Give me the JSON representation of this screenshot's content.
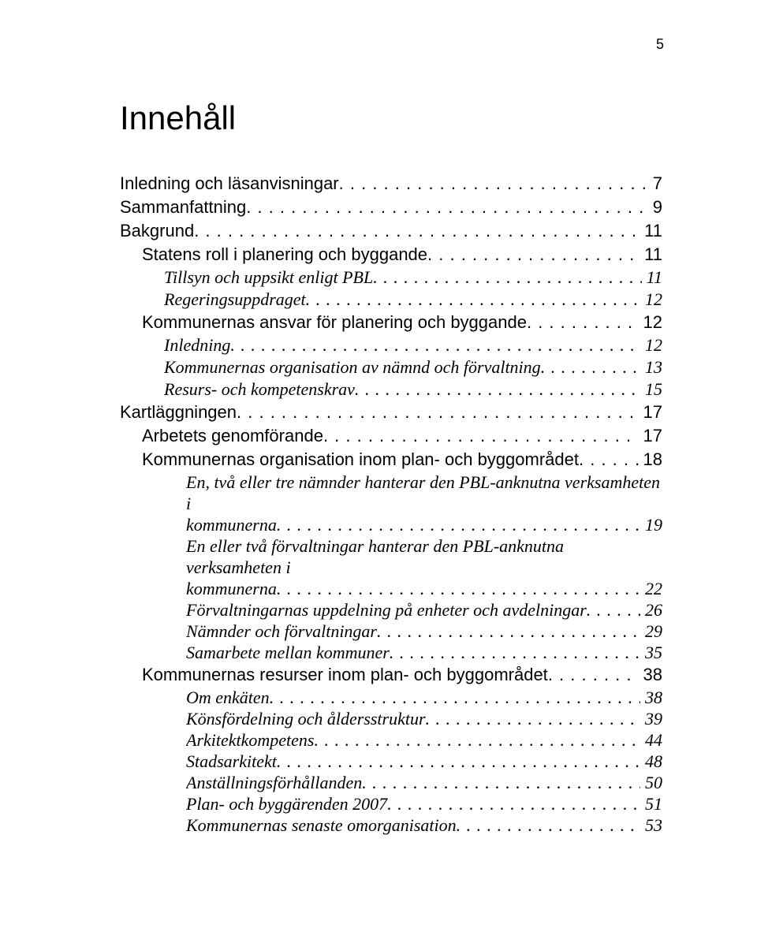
{
  "page_number": "5",
  "title": "Innehåll",
  "toc": [
    {
      "level": 0,
      "label": "Inledning och läsanvisningar",
      "page": "7"
    },
    {
      "level": 0,
      "label": "Sammanfattning",
      "page": "9"
    },
    {
      "level": 0,
      "label": "Bakgrund",
      "page": "11"
    },
    {
      "level": 1,
      "label": "Statens roll i planering och byggande",
      "page": "11"
    },
    {
      "level": 2,
      "label": "Tillsyn och uppsikt enligt PBL",
      "page": "11"
    },
    {
      "level": 2,
      "label": "Regeringsuppdraget",
      "page": "12"
    },
    {
      "level": 1,
      "label": "Kommunernas ansvar för planering och byggande",
      "page": "12"
    },
    {
      "level": 2,
      "label": "Inledning",
      "page": "12"
    },
    {
      "level": 2,
      "label": "Kommunernas organisation av nämnd och förvaltning",
      "page": "13"
    },
    {
      "level": 2,
      "label": "Resurs- och kompetenskrav",
      "page": "15"
    },
    {
      "level": 0,
      "label": "Kartläggningen",
      "page": "17"
    },
    {
      "level": 1,
      "label": "Arbetets genomförande",
      "page": "17"
    },
    {
      "level": 1,
      "label": "Kommunernas organisation inom plan- och byggområdet",
      "page": "18"
    },
    {
      "level": 3,
      "wrap": true,
      "line1": "En, två eller tre nämnder hanterar den PBL-anknutna verksamheten i",
      "line2": "kommunerna",
      "page": "19"
    },
    {
      "level": 3,
      "wrap": true,
      "line1": "En eller två förvaltningar hanterar den PBL-anknutna verksamheten i",
      "line2": "kommunerna",
      "page": "22"
    },
    {
      "level": 3,
      "label": "Förvaltningarnas uppdelning på enheter och avdelningar",
      "page": "26"
    },
    {
      "level": 3,
      "label": "Nämnder och förvaltningar",
      "page": "29"
    },
    {
      "level": 3,
      "label": "Samarbete mellan kommuner",
      "page": "35"
    },
    {
      "level": 1,
      "label": "Kommunernas resurser inom plan- och byggområdet",
      "page": "38"
    },
    {
      "level": 3,
      "label": "Om enkäten",
      "page": "38"
    },
    {
      "level": 3,
      "label": "Könsfördelning och åldersstruktur",
      "page": "39"
    },
    {
      "level": 3,
      "label": "Arkitektkompetens",
      "page": "44"
    },
    {
      "level": 3,
      "label": "Stadsarkitekt",
      "page": "48"
    },
    {
      "level": 3,
      "label": "Anställningsförhållanden",
      "page": "50"
    },
    {
      "level": 3,
      "label": "Plan- och byggärenden 2007",
      "page": "51"
    },
    {
      "level": 3,
      "label": "Kommunernas senaste omorganisation",
      "page": "53"
    }
  ]
}
